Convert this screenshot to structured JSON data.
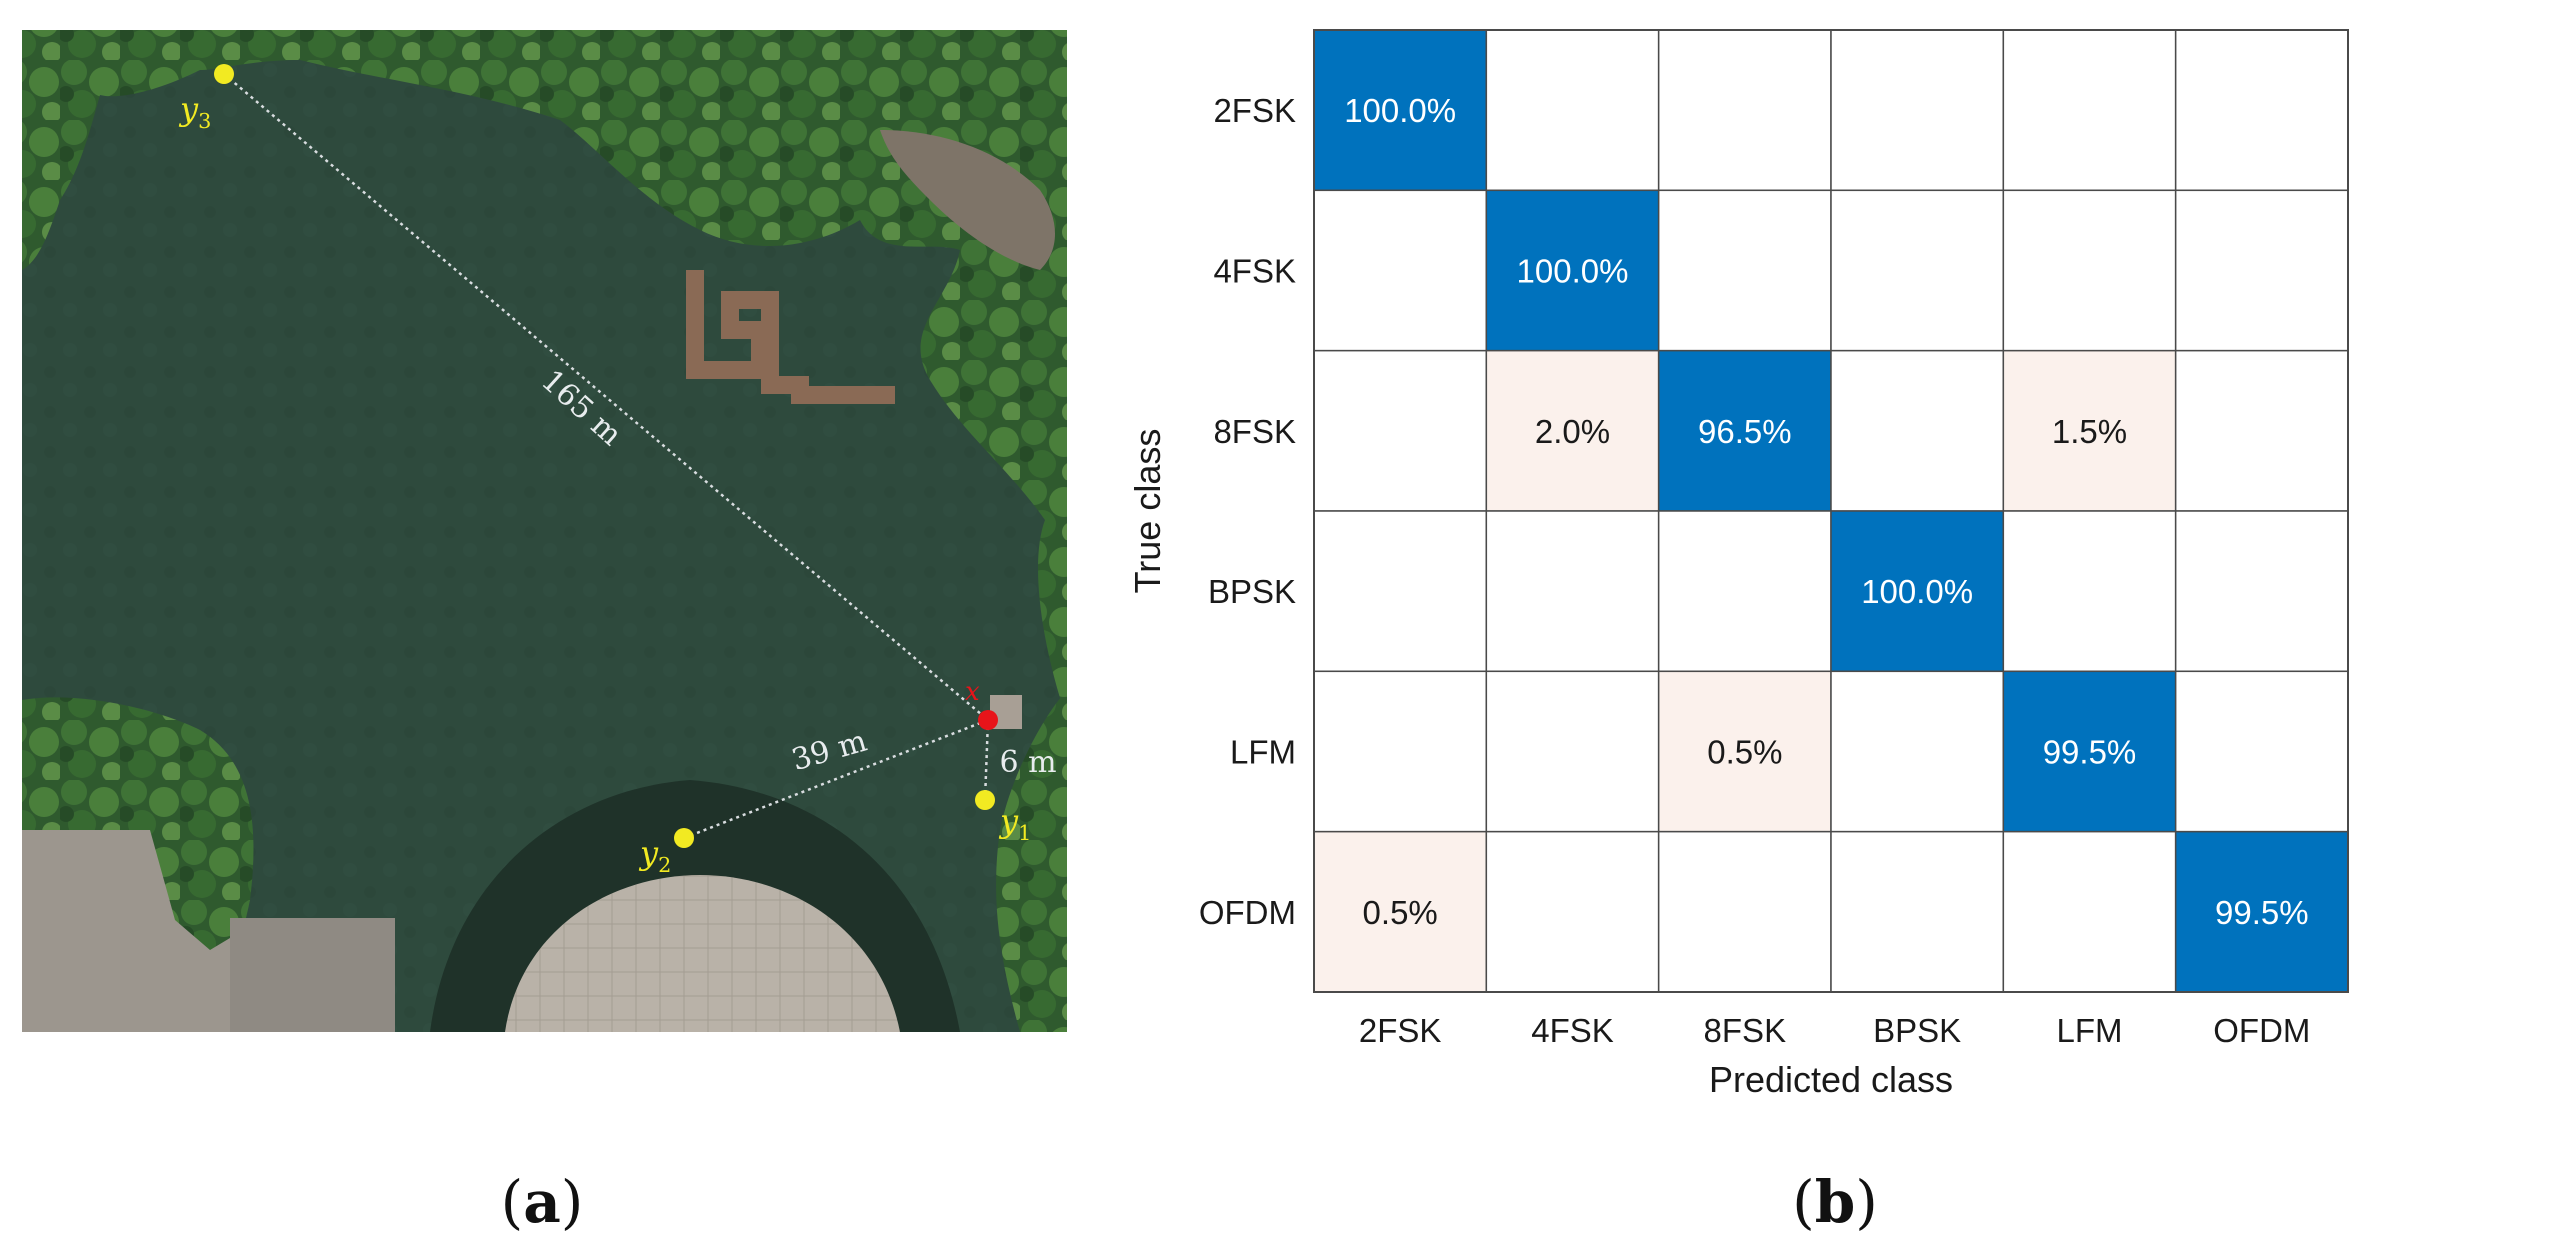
{
  "panel_a": {
    "label_open": "(",
    "label_letter": "a",
    "label_close": ")",
    "distances": {
      "d1": "165 m",
      "d2": "39 m",
      "d3": "6 m"
    },
    "points": {
      "y1": {
        "base": "y",
        "sub": "1"
      },
      "y2": {
        "base": "y",
        "sub": "2"
      },
      "y3": {
        "base": "y",
        "sub": "3"
      },
      "x": {
        "base": "x"
      }
    },
    "colors": {
      "receiver": "#f2ea22",
      "source": "#e8141a",
      "label": "#f2ea22",
      "line": "#d9dde0"
    }
  },
  "panel_b": {
    "label_open": "(",
    "label_letter": "b",
    "label_close": ")"
  },
  "chart_data": {
    "type": "heatmap",
    "xlabel": "Predicted class",
    "ylabel": "True class",
    "classes": [
      "2FSK",
      "4FSK",
      "8FSK",
      "BPSK",
      "LFM",
      "OFDM"
    ],
    "matrix": [
      [
        100.0,
        0,
        0,
        0,
        0,
        0
      ],
      [
        0,
        100.0,
        0,
        0,
        0,
        0
      ],
      [
        0,
        2.0,
        96.5,
        0,
        1.5,
        0
      ],
      [
        0,
        0,
        0,
        100.0,
        0,
        0
      ],
      [
        0,
        0,
        0.5,
        0,
        99.5,
        0
      ],
      [
        0.5,
        0,
        0,
        0,
        0,
        99.5
      ]
    ],
    "cell_labels": [
      [
        "100.0%",
        "",
        "",
        "",
        "",
        ""
      ],
      [
        "",
        "100.0%",
        "",
        "",
        "",
        ""
      ],
      [
        "",
        "2.0%",
        "96.5%",
        "",
        "1.5%",
        ""
      ],
      [
        "",
        "",
        "",
        "100.0%",
        "",
        ""
      ],
      [
        "",
        "",
        "0.5%",
        "",
        "99.5%",
        ""
      ],
      [
        "0.5%",
        "",
        "",
        "",
        "",
        "99.5%"
      ]
    ],
    "colors": {
      "high": "#0072bd",
      "low": "#fbf1ec",
      "empty": "#ffffff",
      "grid": "#4a4a4a",
      "text_on_high": "#ffffff",
      "text_on_low": "#1a1a1a"
    }
  }
}
